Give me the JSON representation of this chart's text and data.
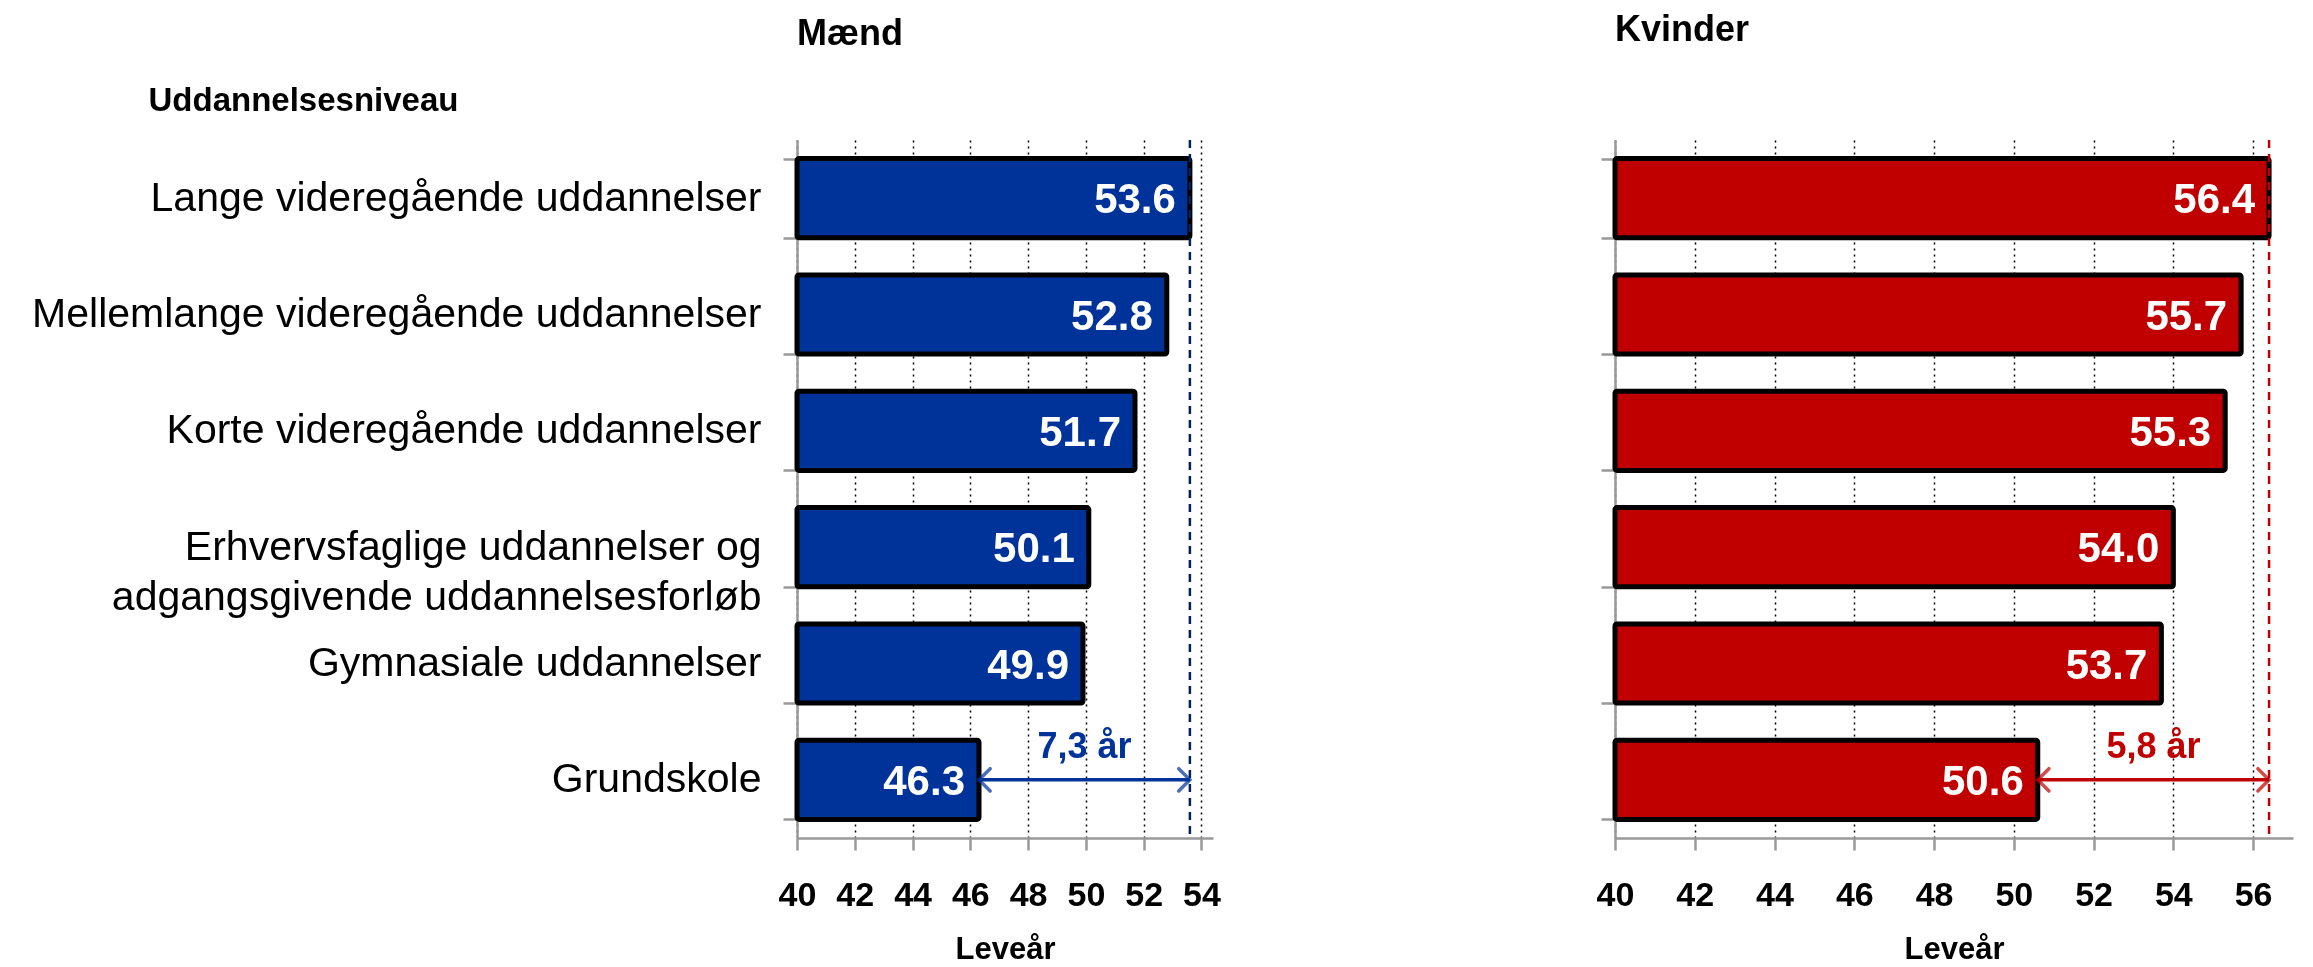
{
  "chart_data": [
    {
      "type": "bar",
      "orientation": "horizontal",
      "title": "Mænd",
      "ylabel": "Uddannelsesniveau",
      "xlabel": "Leveår",
      "categories": [
        "Lange videregående uddannelser",
        "Mellemlange videregående uddannelser",
        "Korte videregående uddannelser",
        "Erhvervsfaglige uddannelser og adgangsgivende uddannelsesforløb",
        "Gymnasiale uddannelser",
        "Grundskole"
      ],
      "series": [
        {
          "color": "#003399",
          "values": [
            53.6,
            52.8,
            51.7,
            50.1,
            49.9,
            46.3
          ],
          "value_labels": [
            "53.6",
            "52.8",
            "51.7",
            "50.1",
            "49.9",
            "46.3"
          ]
        }
      ],
      "xlim": [
        40,
        54.4
      ],
      "xticks": [
        40,
        42,
        44,
        46,
        48,
        50,
        52,
        54
      ],
      "grid": "x",
      "ref_lines": [
        {
          "axis": "x",
          "value": 53.6,
          "color": "#002060",
          "line_style": "dashed"
        }
      ],
      "annotations": [
        {
          "text": "7,3 år",
          "x": 53.6,
          "y": "Grundskole"
        }
      ]
    },
    {
      "type": "bar",
      "orientation": "horizontal",
      "title": "Kvinder",
      "xlabel": "Leveår",
      "categories": [
        "Lange videregående uddannelser",
        "Mellemlange videregående uddannelser",
        "Korte videregående uddannelser",
        "Erhvervsfaglige uddannelser og adgangsgivende uddannelsesforløb",
        "Gymnasiale uddannelser",
        "Grundskole"
      ],
      "series": [
        {
          "color": "#c00000",
          "values": [
            56.4,
            55.7,
            55.3,
            54.0,
            53.7,
            50.6
          ],
          "value_labels": [
            "56.4",
            "55.7",
            "55.3",
            "54.0",
            "53.7",
            "50.6"
          ]
        }
      ],
      "xlim": [
        40,
        57
      ],
      "xticks": [
        40,
        42,
        44,
        46,
        48,
        50,
        52,
        54,
        56
      ],
      "grid": "x",
      "tick_labels": "x",
      "ref_lines": [
        {
          "axis": "x",
          "value": 56.4,
          "color": "#c00000",
          "line_style": "dashed"
        }
      ],
      "annotations": [
        {
          "text": "5,8 år",
          "x": 56.4,
          "y": "Grundskole"
        }
      ]
    }
  ]
}
